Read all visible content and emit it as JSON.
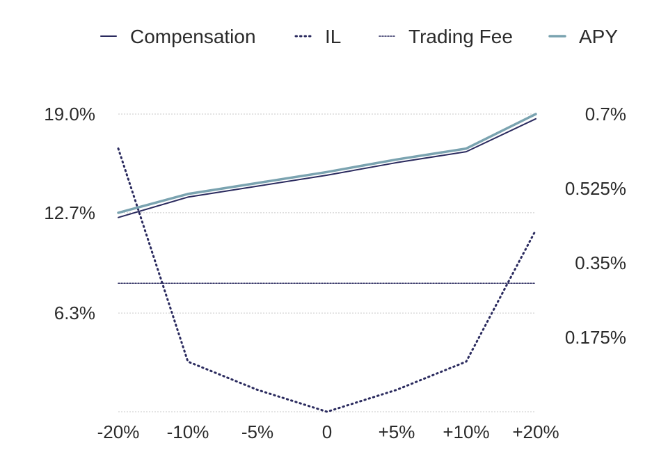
{
  "chart_data": {
    "type": "line",
    "x_labels": [
      "-20%",
      "-10%",
      "-5%",
      "0",
      "+5%",
      "+10%",
      "+20%"
    ],
    "left_axis": {
      "ticks": [
        "19.0%",
        "12.7%",
        "6.3%"
      ],
      "tick_values": [
        19.0,
        12.7,
        6.3
      ],
      "range": [
        0,
        19.0
      ]
    },
    "right_axis": {
      "ticks": [
        "0.7%",
        "0.525%",
        "0.35%",
        "0.175%"
      ],
      "tick_values": [
        0.7,
        0.525,
        0.35,
        0.175
      ],
      "range": [
        0,
        0.7
      ]
    },
    "grid": true,
    "legend_position": "top",
    "series": [
      {
        "name": "Compensation",
        "axis": "left",
        "style": "solid",
        "color": "#2a2a5e",
        "width": 2,
        "values": [
          12.4,
          13.7,
          14.4,
          15.1,
          15.9,
          16.6,
          18.7
        ]
      },
      {
        "name": "IL",
        "axis": "left",
        "style": "dotted",
        "color": "#2a2a5e",
        "width": 3,
        "values": [
          16.8,
          3.2,
          1.4,
          0.0,
          1.4,
          3.2,
          11.6
        ]
      },
      {
        "name": "Trading Fee",
        "axis": "left",
        "style": "dotted-fine",
        "color": "#2a2a5e",
        "width": 1.5,
        "values": [
          8.2,
          8.2,
          8.2,
          8.2,
          8.2,
          8.2,
          8.2
        ]
      },
      {
        "name": "APY",
        "axis": "left",
        "style": "solid",
        "color": "#7aa3b0",
        "width": 3.5,
        "values": [
          12.7,
          13.9,
          14.6,
          15.3,
          16.1,
          16.8,
          19.0
        ]
      }
    ]
  }
}
